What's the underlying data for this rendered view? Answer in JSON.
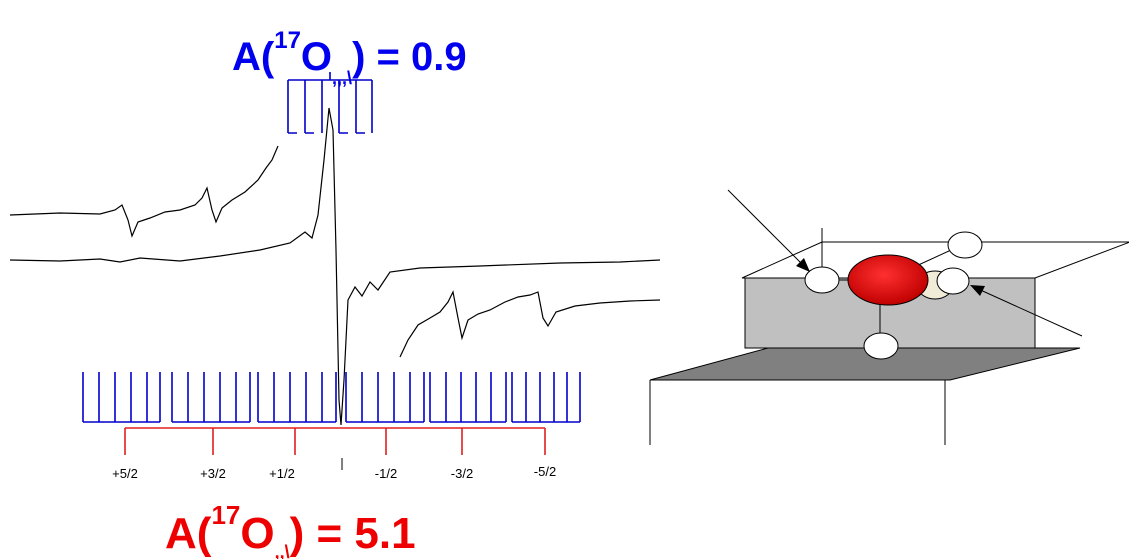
{
  "top_label": {
    "prefix": "A(",
    "superscript": "17",
    "element": "O",
    "subscript": ",,,\\",
    "suffix": ") = 0.9"
  },
  "bottom_label": {
    "prefix": "A(",
    "superscript": "17",
    "element": "O",
    "subscript": ",,\\",
    "suffix": ") = 5.1"
  },
  "spin_labels": [
    "+5/2",
    "+3/2",
    "+1/2",
    "-1/2",
    "-3/2",
    "-5/2"
  ]
}
